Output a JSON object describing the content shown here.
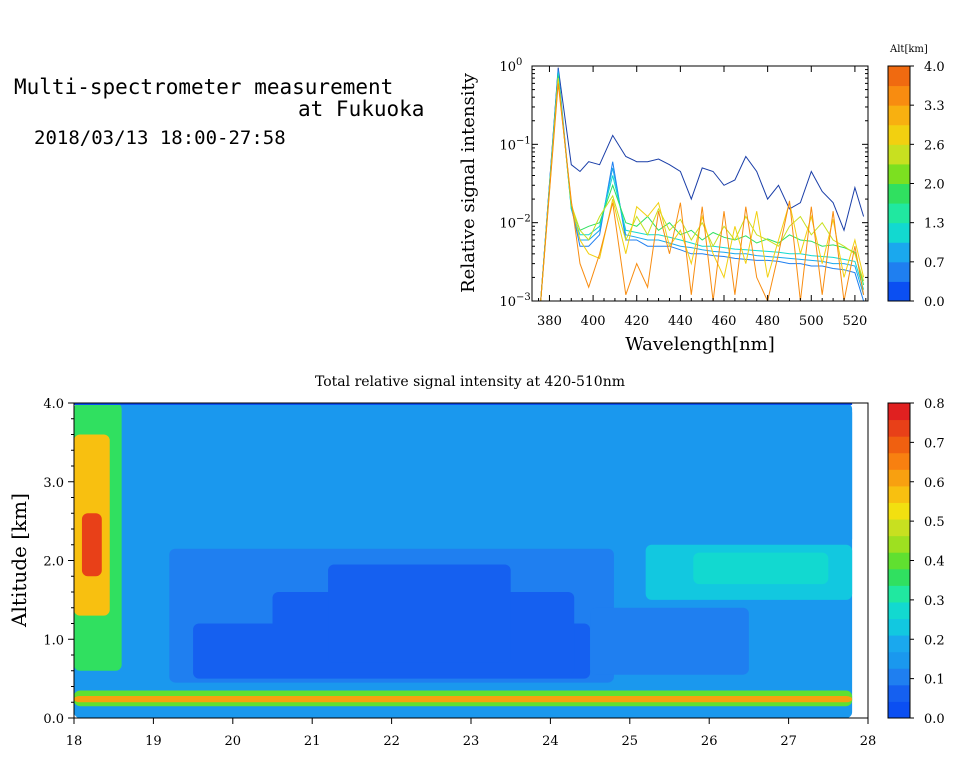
{
  "header": {
    "title_line1": "Multi-spectrometer measurement",
    "title_line2": "at Fukuoka",
    "date_range": "2018/03/13 18:00-27:58"
  },
  "chart_data": [
    {
      "type": "line",
      "xlabel": "Wavelength[nm]",
      "ylabel": "Relative signal intensity",
      "xlim": [
        372,
        526
      ],
      "ylim": [
        0.001,
        1
      ],
      "yscale": "log",
      "x_ticks": [
        380,
        400,
        420,
        440,
        460,
        480,
        500,
        520
      ],
      "y_ticks": [
        {
          "label": "10",
          "exp": "0",
          "value": 1
        },
        {
          "label": "10",
          "exp": "−1",
          "value": 0.1
        },
        {
          "label": "10",
          "exp": "−2",
          "value": 0.01
        },
        {
          "label": "10",
          "exp": "−3",
          "value": 0.001
        }
      ],
      "colorbar": {
        "title": "Alt[km]",
        "ticks": [
          "0.0",
          "0.7",
          "1.3",
          "2.0",
          "2.6",
          "3.3",
          "4.0"
        ],
        "colors": [
          "#0b4ff2",
          "#1f7ff0",
          "#1aa8ee",
          "#12d9d0",
          "#20e8a0",
          "#30e060",
          "#7ce020",
          "#c8e020",
          "#f2d010",
          "#f8b010",
          "#f88c10",
          "#f06a10"
        ]
      },
      "series": [
        {
          "color": "#1a3ea8",
          "x": [
            376,
            384,
            390,
            394,
            398,
            403,
            409,
            415,
            420,
            425,
            430,
            435,
            440,
            445,
            450,
            455,
            460,
            465,
            470,
            475,
            480,
            485,
            490,
            495,
            500,
            505,
            510,
            515,
            520,
            524
          ],
          "y": [
            0.001,
            0.95,
            0.055,
            0.045,
            0.06,
            0.055,
            0.13,
            0.07,
            0.06,
            0.06,
            0.065,
            0.055,
            0.045,
            0.02,
            0.05,
            0.045,
            0.03,
            0.035,
            0.07,
            0.045,
            0.02,
            0.03,
            0.015,
            0.018,
            0.045,
            0.025,
            0.018,
            0.008,
            0.028,
            0.012
          ]
        },
        {
          "color": "#1f7ff0",
          "x": [
            376,
            384,
            390,
            394,
            398,
            403,
            409,
            415,
            420,
            425,
            430,
            435,
            440,
            445,
            450,
            455,
            460,
            465,
            470,
            475,
            480,
            485,
            490,
            495,
            500,
            505,
            510,
            515,
            520,
            524
          ],
          "y": [
            0.001,
            0.9,
            0.016,
            0.005,
            0.005,
            0.007,
            0.06,
            0.006,
            0.006,
            0.005,
            0.005,
            0.005,
            0.0045,
            0.004,
            0.004,
            0.0038,
            0.0037,
            0.0035,
            0.0034,
            0.0033,
            0.0033,
            0.0032,
            0.003,
            0.003,
            0.0028,
            0.0028,
            0.0026,
            0.0025,
            0.0023,
            0.001
          ]
        },
        {
          "color": "#1aa8ee",
          "x": [
            376,
            384,
            390,
            394,
            398,
            403,
            409,
            415,
            420,
            425,
            430,
            435,
            440,
            445,
            450,
            455,
            460,
            465,
            470,
            475,
            480,
            485,
            490,
            495,
            500,
            505,
            510,
            515,
            520,
            524
          ],
          "y": [
            0.001,
            0.85,
            0.015,
            0.006,
            0.006,
            0.008,
            0.05,
            0.007,
            0.0065,
            0.006,
            0.006,
            0.0055,
            0.005,
            0.0048,
            0.0045,
            0.0043,
            0.0042,
            0.004,
            0.004,
            0.0038,
            0.0037,
            0.0036,
            0.0035,
            0.0034,
            0.0033,
            0.0032,
            0.003,
            0.003,
            0.0028,
            0.0012
          ]
        },
        {
          "color": "#12d9d0",
          "x": [
            376,
            384,
            390,
            394,
            398,
            403,
            409,
            415,
            420,
            425,
            430,
            435,
            440,
            445,
            450,
            455,
            460,
            465,
            470,
            475,
            480,
            485,
            490,
            495,
            500,
            505,
            510,
            515,
            520,
            524
          ],
          "y": [
            0.001,
            0.8,
            0.015,
            0.007,
            0.007,
            0.009,
            0.04,
            0.008,
            0.0075,
            0.007,
            0.007,
            0.0065,
            0.006,
            0.0055,
            0.005,
            0.005,
            0.0048,
            0.0046,
            0.0045,
            0.0044,
            0.0043,
            0.0042,
            0.004,
            0.004,
            0.0038,
            0.0037,
            0.0036,
            0.0034,
            0.0032,
            0.0014
          ]
        },
        {
          "color": "#30e060",
          "x": [
            376,
            384,
            390,
            394,
            398,
            403,
            409,
            415,
            420,
            425,
            430,
            435,
            440,
            445,
            450,
            455,
            460,
            465,
            470,
            475,
            480,
            485,
            490,
            495,
            500,
            505,
            510,
            515,
            520,
            524
          ],
          "y": [
            0.001,
            0.75,
            0.016,
            0.008,
            0.009,
            0.01,
            0.03,
            0.01,
            0.009,
            0.012,
            0.008,
            0.01,
            0.007,
            0.008,
            0.006,
            0.0075,
            0.0065,
            0.006,
            0.0068,
            0.0055,
            0.0062,
            0.0055,
            0.007,
            0.006,
            0.0058,
            0.005,
            0.0052,
            0.0048,
            0.0042,
            0.0016
          ]
        },
        {
          "color": "#c8e020",
          "x": [
            376,
            384,
            390,
            394,
            398,
            403,
            409,
            415,
            420,
            425,
            430,
            435,
            440,
            445,
            450,
            455,
            460,
            465,
            470,
            475,
            480,
            485,
            490,
            495,
            500,
            505,
            510,
            515,
            520,
            524
          ],
          "y": [
            0.001,
            0.7,
            0.017,
            0.008,
            0.006,
            0.012,
            0.022,
            0.006,
            0.012,
            0.007,
            0.015,
            0.008,
            0.011,
            0.006,
            0.01,
            0.005,
            0.009,
            0.006,
            0.012,
            0.007,
            0.006,
            0.005,
            0.009,
            0.012,
            0.007,
            0.01,
            0.006,
            0.005,
            0.004,
            0.0018
          ]
        },
        {
          "color": "#f2d010",
          "x": [
            376,
            384,
            390,
            394,
            398,
            403,
            409,
            415,
            420,
            425,
            430,
            435,
            440,
            445,
            450,
            455,
            460,
            465,
            470,
            475,
            480,
            485,
            490,
            495,
            500,
            505,
            510,
            515,
            520,
            524
          ],
          "y": [
            0.001,
            0.65,
            0.018,
            0.006,
            0.004,
            0.0035,
            0.02,
            0.004,
            0.016,
            0.012,
            0.018,
            0.005,
            0.008,
            0.003,
            0.012,
            0.004,
            0.002,
            0.009,
            0.003,
            0.014,
            0.002,
            0.006,
            0.018,
            0.004,
            0.012,
            0.003,
            0.011,
            0.002,
            0.006,
            0.002
          ]
        },
        {
          "color": "#f88c10",
          "x": [
            376,
            384,
            390,
            394,
            398,
            403,
            409,
            415,
            420,
            425,
            430,
            435,
            440,
            445,
            450,
            455,
            460,
            465,
            470,
            475,
            480,
            485,
            490,
            495,
            500,
            505,
            510,
            515,
            520,
            524
          ],
          "y": [
            0.001,
            0.6,
            0.019,
            0.003,
            0.0015,
            0.004,
            0.018,
            0.0012,
            0.003,
            0.0015,
            0.014,
            0.004,
            0.018,
            0.0012,
            0.016,
            0.001,
            0.014,
            0.0012,
            0.016,
            0.002,
            0.001,
            0.004,
            0.019,
            0.001,
            0.016,
            0.0012,
            0.014,
            0.001,
            0.005,
            0.0012
          ]
        }
      ]
    },
    {
      "type": "heatmap",
      "title": "Total relative signal intensity at 420-510nm",
      "xlabel": "",
      "ylabel": "Altitude [km]",
      "xlim": [
        18,
        28
      ],
      "ylim": [
        0,
        4
      ],
      "x_ticks": [
        "18",
        "19",
        "20",
        "21",
        "22",
        "23",
        "24",
        "25",
        "26",
        "27",
        "28"
      ],
      "y_ticks": [
        "0.0",
        "1.0",
        "2.0",
        "3.0",
        "4.0"
      ],
      "colorbar": {
        "range": [
          0,
          0.8
        ],
        "ticks": [
          "0.0",
          "0.1",
          "0.2",
          "0.3",
          "0.4",
          "0.5",
          "0.6",
          "0.7",
          "0.8"
        ],
        "colors": [
          "#0b4ff2",
          "#1560f0",
          "#1f7ff0",
          "#1a98ee",
          "#1aa8ee",
          "#12c8e0",
          "#12d9d0",
          "#20e8a0",
          "#30e060",
          "#60e030",
          "#9ee020",
          "#c8e020",
          "#f2e010",
          "#f8c010",
          "#f8a010",
          "#f88010",
          "#f06010",
          "#e84018",
          "#e02020"
        ]
      },
      "regions": [
        {
          "t0": 18.0,
          "t1": 27.8,
          "z0": 0.0,
          "z1": 4.0,
          "v": 0.16
        },
        {
          "t0": 19.0,
          "t1": 27.8,
          "z0": 2.2,
          "z1": 3.95,
          "v": 0.14
        },
        {
          "t0": 19.2,
          "t1": 24.8,
          "z0": 0.45,
          "z1": 2.15,
          "v": 0.12
        },
        {
          "t0": 19.5,
          "t1": 24.5,
          "z0": 0.5,
          "z1": 1.2,
          "v": 0.08
        },
        {
          "t0": 20.5,
          "t1": 24.3,
          "z0": 0.55,
          "z1": 1.6,
          "v": 0.07
        },
        {
          "t0": 21.2,
          "t1": 23.5,
          "z0": 0.7,
          "z1": 1.95,
          "v": 0.07
        },
        {
          "t0": 24.5,
          "t1": 26.5,
          "z0": 0.55,
          "z1": 1.4,
          "v": 0.09
        },
        {
          "t0": 25.2,
          "t1": 27.8,
          "z0": 1.5,
          "z1": 2.2,
          "v": 0.22
        },
        {
          "t0": 25.8,
          "t1": 27.5,
          "z0": 1.7,
          "z1": 2.1,
          "v": 0.28
        },
        {
          "t0": 18.0,
          "t1": 27.8,
          "z0": 0.15,
          "z1": 0.35,
          "v": 0.42
        },
        {
          "t0": 18.0,
          "t1": 27.8,
          "z0": 0.2,
          "z1": 0.28,
          "v": 0.6
        },
        {
          "t0": 18.0,
          "t1": 18.6,
          "z0": 0.6,
          "z1": 4.0,
          "v": 0.35
        },
        {
          "t0": 18.0,
          "t1": 18.45,
          "z0": 1.3,
          "z1": 3.6,
          "v": 0.55
        },
        {
          "t0": 18.1,
          "t1": 18.35,
          "z0": 1.8,
          "z1": 2.6,
          "v": 0.72
        }
      ]
    }
  ]
}
